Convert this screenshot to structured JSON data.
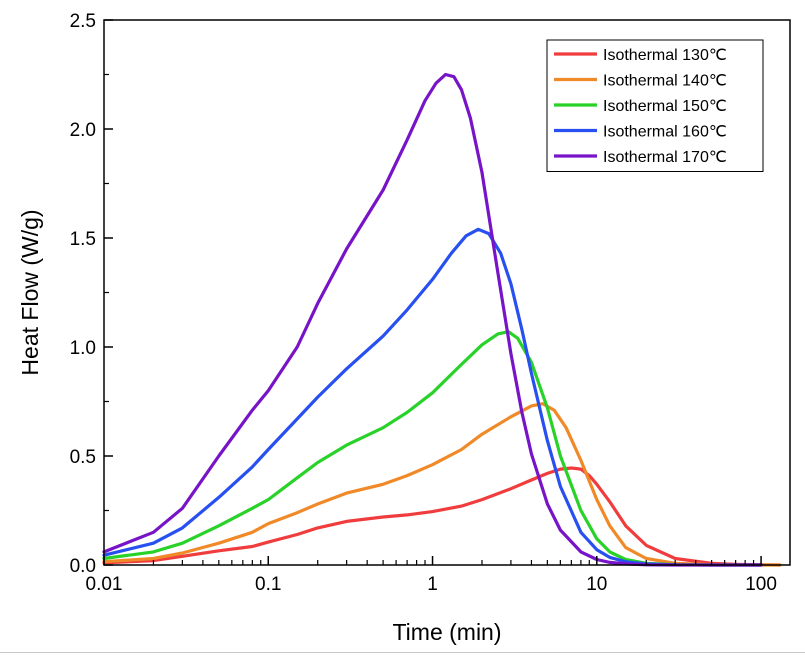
{
  "chart_data": {
    "type": "line",
    "xlabel": "Time (min)",
    "ylabel": "Heat Flow (W/g)",
    "xscale": "log",
    "xlim": [
      0.01,
      150
    ],
    "ylim": [
      0,
      2.5
    ],
    "xticks": [
      {
        "value": 0.01,
        "label": "0.01"
      },
      {
        "value": 0.1,
        "label": "0.1"
      },
      {
        "value": 1,
        "label": "1"
      },
      {
        "value": 10,
        "label": "10"
      },
      {
        "value": 100,
        "label": "100"
      }
    ],
    "yticks": [
      {
        "value": 0,
        "label": "0.0"
      },
      {
        "value": 0.5,
        "label": "0.5"
      },
      {
        "value": 1.0,
        "label": "1.0"
      },
      {
        "value": 1.5,
        "label": "1.5"
      },
      {
        "value": 2.0,
        "label": "2.0"
      },
      {
        "value": 2.5,
        "label": "2.5"
      }
    ],
    "grid": false,
    "legend_position": "top-right",
    "series": [
      {
        "name": "Isothermal 130℃",
        "color": "#f03c3c",
        "x": [
          0.01,
          0.02,
          0.03,
          0.05,
          0.08,
          0.1,
          0.15,
          0.2,
          0.3,
          0.5,
          0.7,
          1,
          1.5,
          2,
          3,
          4,
          5,
          6,
          7,
          8,
          9,
          10,
          12,
          15,
          20,
          30,
          50,
          70,
          100,
          130
        ],
        "y": [
          0.01,
          0.02,
          0.04,
          0.065,
          0.085,
          0.105,
          0.14,
          0.17,
          0.2,
          0.22,
          0.23,
          0.245,
          0.27,
          0.3,
          0.35,
          0.39,
          0.42,
          0.44,
          0.445,
          0.44,
          0.41,
          0.37,
          0.29,
          0.18,
          0.09,
          0.03,
          0.008,
          0.003,
          0.001,
          0.0
        ]
      },
      {
        "name": "Isothermal 140℃",
        "color": "#f08a28",
        "x": [
          0.01,
          0.02,
          0.03,
          0.05,
          0.08,
          0.1,
          0.15,
          0.2,
          0.3,
          0.5,
          0.7,
          1,
          1.5,
          2,
          3,
          4,
          4.7,
          5.5,
          6.5,
          8,
          10,
          12,
          15,
          20,
          30,
          50,
          70,
          100,
          130
        ],
        "y": [
          0.015,
          0.03,
          0.055,
          0.1,
          0.15,
          0.19,
          0.24,
          0.28,
          0.33,
          0.37,
          0.41,
          0.46,
          0.53,
          0.6,
          0.68,
          0.73,
          0.74,
          0.71,
          0.63,
          0.48,
          0.3,
          0.18,
          0.08,
          0.03,
          0.008,
          0.002,
          0.001,
          0.0,
          0.0
        ]
      },
      {
        "name": "Isothermal 150℃",
        "color": "#28d228",
        "x": [
          0.01,
          0.02,
          0.03,
          0.05,
          0.08,
          0.1,
          0.15,
          0.2,
          0.3,
          0.5,
          0.7,
          1,
          1.5,
          2,
          2.5,
          2.9,
          3.3,
          4,
          5,
          6,
          8,
          10,
          12,
          15,
          20,
          30,
          50,
          100
        ],
        "y": [
          0.03,
          0.06,
          0.1,
          0.18,
          0.26,
          0.3,
          0.4,
          0.47,
          0.55,
          0.63,
          0.7,
          0.79,
          0.92,
          1.01,
          1.06,
          1.07,
          1.04,
          0.93,
          0.72,
          0.5,
          0.25,
          0.12,
          0.06,
          0.025,
          0.008,
          0.002,
          0.0,
          0.0
        ]
      },
      {
        "name": "Isothermal 160℃",
        "color": "#2850f0",
        "x": [
          0.01,
          0.02,
          0.03,
          0.05,
          0.08,
          0.1,
          0.15,
          0.2,
          0.3,
          0.5,
          0.7,
          1,
          1.3,
          1.6,
          1.9,
          2.2,
          2.6,
          3,
          3.5,
          4,
          5,
          6,
          8,
          10,
          12,
          15,
          20,
          30,
          50,
          100
        ],
        "y": [
          0.045,
          0.1,
          0.17,
          0.31,
          0.45,
          0.53,
          0.67,
          0.77,
          0.9,
          1.05,
          1.17,
          1.31,
          1.43,
          1.51,
          1.54,
          1.52,
          1.43,
          1.29,
          1.08,
          0.88,
          0.57,
          0.36,
          0.15,
          0.07,
          0.035,
          0.015,
          0.005,
          0.001,
          0.0,
          0.0
        ]
      },
      {
        "name": "Isothermal 170℃",
        "color": "#7814c8",
        "x": [
          0.01,
          0.02,
          0.03,
          0.05,
          0.08,
          0.1,
          0.15,
          0.2,
          0.3,
          0.5,
          0.7,
          0.9,
          1.05,
          1.2,
          1.35,
          1.5,
          1.7,
          2,
          2.5,
          3,
          3.5,
          4,
          5,
          6,
          8,
          10,
          12,
          15,
          20,
          30,
          50,
          100
        ],
        "y": [
          0.06,
          0.15,
          0.26,
          0.5,
          0.71,
          0.8,
          1.0,
          1.2,
          1.45,
          1.72,
          1.95,
          2.13,
          2.21,
          2.25,
          2.24,
          2.18,
          2.05,
          1.8,
          1.34,
          0.97,
          0.7,
          0.51,
          0.28,
          0.16,
          0.06,
          0.025,
          0.012,
          0.005,
          0.001,
          0.0,
          0.0,
          0.0
        ]
      }
    ]
  }
}
